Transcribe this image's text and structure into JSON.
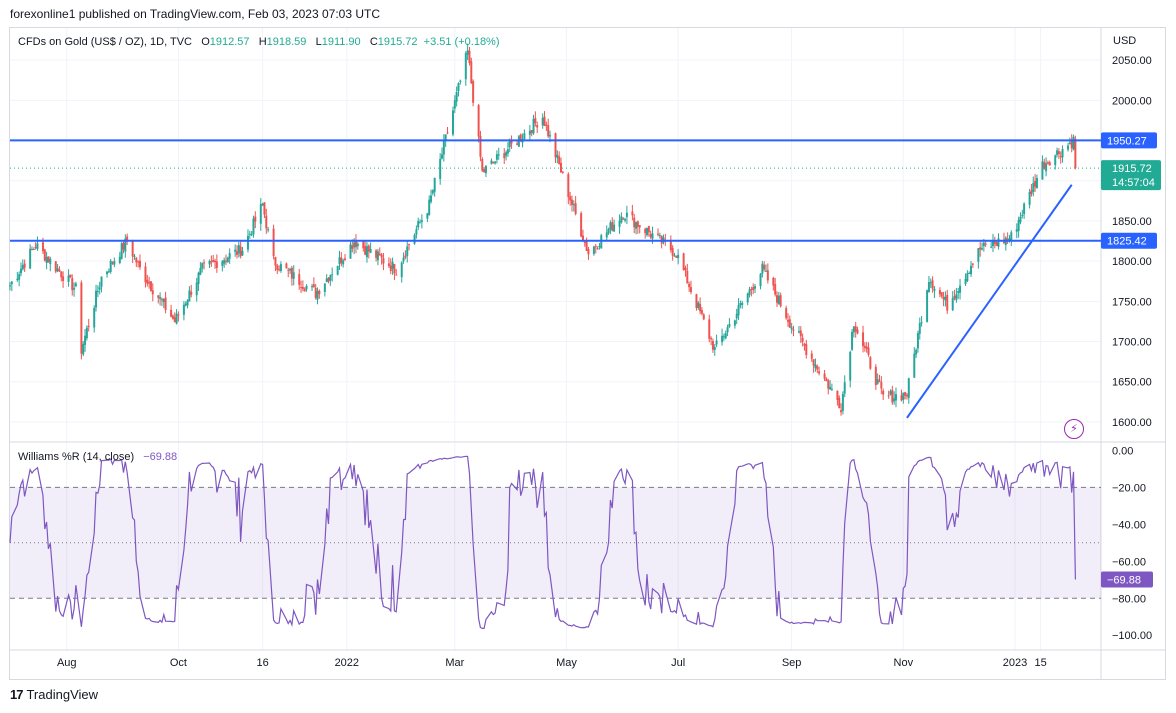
{
  "header": {
    "publisher": "forexonline1 published on TradingView.com, Feb 03, 2023 07:03 UTC"
  },
  "legend": {
    "symbol": "CFDs on Gold (US$ / OZ), 1D, TVC",
    "open_label": "O",
    "open": "1912.57",
    "high_label": "H",
    "high": "1918.59",
    "low_label": "L",
    "low": "1911.90",
    "close_label": "C",
    "close": "1915.72",
    "change": "+3.51 (+0.18%)"
  },
  "currency": "USD",
  "price_axis": {
    "ticks": [
      "2050.00",
      "2000.00",
      "1850.00",
      "1800.00",
      "1750.00",
      "1700.00",
      "1650.00",
      "1600.00"
    ]
  },
  "horizontal_lines": [
    {
      "label": "1950.27",
      "color": "#2962ff"
    },
    {
      "label": "1825.42",
      "color": "#2962ff"
    }
  ],
  "last_price": {
    "label": "1915.72",
    "countdown": "14:57:04",
    "color": "#22ab94"
  },
  "indicator": {
    "name": "Williams %R (14, close)",
    "value": "−69.88",
    "color": "#7e57c2",
    "ticks": [
      "0.00",
      "−20.00",
      "−40.00",
      "−60.00",
      "−80.00",
      "−100.00"
    ]
  },
  "time_axis": [
    "Aug",
    "Oct",
    "16",
    "2022",
    "Mar",
    "May",
    "Jul",
    "Sep",
    "Nov",
    "2023",
    "15"
  ],
  "footer": {
    "brand": "TradingView",
    "logo_icon": "tradingview-logo-icon"
  },
  "icons": {
    "bolt": "lightning-icon"
  },
  "chart_data": [
    {
      "type": "candlestick",
      "title": "CFDs on Gold (US$ / OZ), 1D, TVC",
      "ylabel": "USD",
      "ylim": [
        1575,
        2090
      ],
      "x_range": [
        "2021-07-01",
        "2023-02-17"
      ],
      "up_color": "#26a69a",
      "down_color": "#ef5350",
      "grid": true,
      "waypoints": [
        [
          "2021-07-01",
          1770
        ],
        [
          "2021-07-15",
          1820
        ],
        [
          "2021-08-06",
          1765
        ],
        [
          "2021-08-09",
          1690
        ],
        [
          "2021-08-20",
          1780
        ],
        [
          "2021-09-03",
          1825
        ],
        [
          "2021-09-10",
          1790
        ],
        [
          "2021-09-29",
          1725
        ],
        [
          "2021-10-14",
          1790
        ],
        [
          "2021-11-05",
          1815
        ],
        [
          "2021-11-16",
          1870
        ],
        [
          "2021-11-22",
          1800
        ],
        [
          "2021-12-15",
          1760
        ],
        [
          "2022-01-05",
          1825
        ],
        [
          "2022-01-28",
          1790
        ],
        [
          "2022-02-15",
          1870
        ],
        [
          "2022-03-08",
          2060
        ],
        [
          "2022-03-16",
          1910
        ],
        [
          "2022-04-18",
          1980
        ],
        [
          "2022-05-13",
          1810
        ],
        [
          "2022-06-01",
          1860
        ],
        [
          "2022-06-30",
          1810
        ],
        [
          "2022-07-21",
          1690
        ],
        [
          "2022-08-16",
          1790
        ],
        [
          "2022-09-01",
          1720
        ],
        [
          "2022-09-28",
          1620
        ],
        [
          "2022-10-05",
          1725
        ],
        [
          "2022-10-21",
          1630
        ],
        [
          "2022-11-03",
          1635
        ],
        [
          "2022-11-15",
          1780
        ],
        [
          "2022-11-25",
          1745
        ],
        [
          "2022-12-13",
          1815
        ],
        [
          "2022-12-30",
          1830
        ],
        [
          "2023-01-16",
          1920
        ],
        [
          "2023-02-02",
          1950
        ],
        [
          "2023-02-03",
          1915.72
        ]
      ],
      "levels": [
        1950.27,
        1825.42
      ],
      "trendline": {
        "from": [
          "2022-11-03",
          1605
        ],
        "to": [
          "2023-02-01",
          1895
        ]
      }
    },
    {
      "type": "line",
      "title": "Williams %R (14, close)",
      "ylim": [
        -108,
        4
      ],
      "bands": [
        -20,
        -80
      ],
      "midline": -50,
      "last_value": -69.88
    }
  ]
}
